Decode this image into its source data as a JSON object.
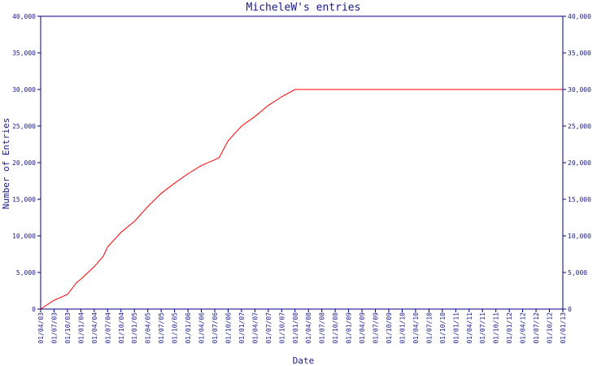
{
  "chart_data": {
    "type": "line",
    "title": "MicheleW's entries",
    "xlabel": "Date",
    "ylabel": "Number of Entries",
    "ylim": [
      0,
      40000
    ],
    "yticks": [
      0,
      5000,
      10000,
      15000,
      20000,
      25000,
      30000,
      35000,
      40000
    ],
    "ytick_labels": [
      "0",
      "5,000",
      "10,000",
      "15,000",
      "20,000",
      "25,000",
      "30,000",
      "35,000",
      "40,000"
    ],
    "xlim": [
      "2003-04-01",
      "2013-01-01"
    ],
    "xtick_labels": [
      "01/04/03",
      "01/07/03",
      "01/10/03",
      "01/01/04",
      "01/04/04",
      "01/07/04",
      "01/10/04",
      "01/01/05",
      "01/04/05",
      "01/07/05",
      "01/10/05",
      "01/01/06",
      "01/04/06",
      "01/07/06",
      "01/10/06",
      "01/01/07",
      "01/04/07",
      "01/07/07",
      "01/10/07",
      "01/01/08",
      "01/04/08",
      "01/07/08",
      "01/10/08",
      "01/01/09",
      "01/04/09",
      "01/07/09",
      "01/10/09",
      "01/01/10",
      "01/04/10",
      "01/07/10",
      "01/10/10",
      "01/01/11",
      "01/04/11",
      "01/07/11",
      "01/10/11",
      "01/01/12",
      "01/04/12",
      "01/07/12",
      "01/10/12",
      "01/01/13"
    ],
    "grid": false,
    "colors": {
      "line": "#ff0000",
      "axis": "#000080",
      "text": "#1a1a8c"
    },
    "series": [
      {
        "x": [
          "2003-04-01",
          "2003-07-01",
          "2003-10-01",
          "2003-12-01",
          "2004-01-01",
          "2004-04-01",
          "2004-06-01",
          "2004-07-01",
          "2004-10-01",
          "2005-01-01",
          "2005-04-01",
          "2005-07-01",
          "2005-10-01",
          "2006-01-01",
          "2006-04-01",
          "2006-07-01",
          "2006-08-01",
          "2006-10-01",
          "2007-01-01",
          "2007-04-01",
          "2007-07-01",
          "2007-10-01",
          "2008-01-01",
          "2013-01-01"
        ],
        "y": [
          0,
          1200,
          2000,
          3600,
          4100,
          5800,
          7200,
          8500,
          10500,
          12000,
          14000,
          15800,
          17200,
          18500,
          19600,
          20400,
          20700,
          23000,
          25000,
          26300,
          27800,
          29000,
          30000,
          30000
        ]
      }
    ]
  }
}
